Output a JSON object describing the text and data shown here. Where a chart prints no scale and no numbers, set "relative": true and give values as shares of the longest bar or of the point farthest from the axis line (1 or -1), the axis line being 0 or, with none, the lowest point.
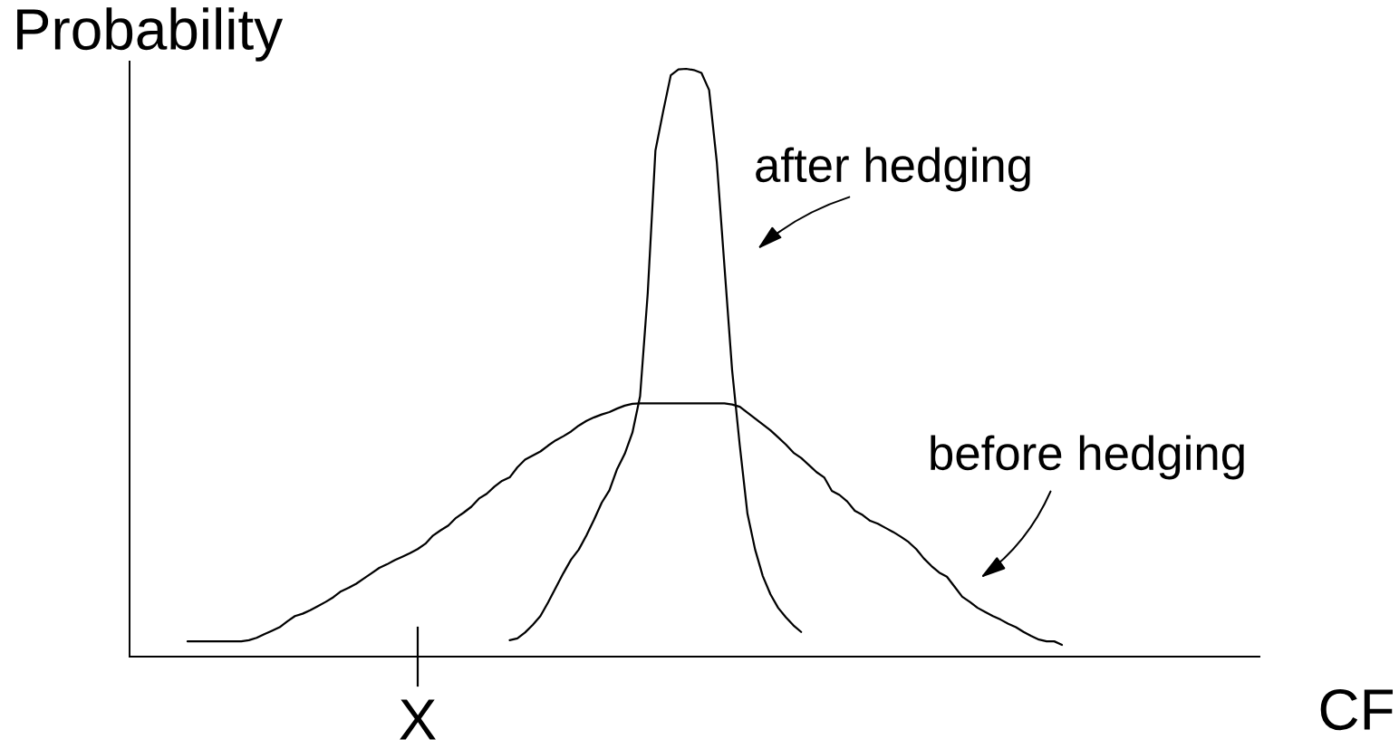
{
  "chart_data": {
    "type": "line",
    "relative": true,
    "ylabel": "Probability",
    "xlabel": "CF",
    "line_style": "solid",
    "categories": [
      null,
      null,
      null,
      null,
      null,
      null,
      null,
      null,
      null,
      null,
      null,
      null,
      null,
      null,
      null,
      null,
      null,
      null,
      null,
      null,
      null,
      null,
      null,
      null,
      null,
      null,
      null,
      null,
      null,
      null,
      null,
      null,
      null,
      null,
      null,
      null,
      null,
      null,
      null,
      null,
      null,
      null,
      null,
      null,
      null,
      null,
      null,
      null,
      null,
      null,
      null,
      null,
      null,
      null,
      null,
      null,
      null,
      null,
      null,
      null,
      null,
      null,
      null,
      null,
      null,
      null,
      null,
      null,
      null,
      null,
      null,
      null,
      null,
      null,
      null,
      null,
      null,
      null,
      null,
      null,
      null,
      null,
      null,
      null,
      null,
      null,
      null,
      null,
      null,
      null,
      null,
      null,
      null,
      null,
      null,
      null,
      null,
      null,
      null,
      null,
      null,
      null,
      null,
      null,
      null,
      null,
      null,
      null,
      null,
      null,
      null,
      null,
      null,
      null,
      null
    ],
    "series": [
      {
        "name": "before hedging",
        "color": "#000000",
        "values": [
          0.026,
          0.026,
          0.026,
          0.026,
          0.026,
          0.026,
          0.026,
          0.026,
          0.028,
          0.032,
          0.038,
          0.044,
          0.05,
          0.06,
          0.069,
          0.073,
          0.079,
          0.086,
          0.093,
          0.101,
          0.111,
          0.117,
          0.124,
          0.133,
          0.142,
          0.151,
          0.157,
          0.164,
          0.17,
          0.176,
          0.183,
          0.192,
          0.206,
          0.215,
          0.223,
          0.236,
          0.245,
          0.255,
          0.269,
          0.277,
          0.289,
          0.299,
          0.305,
          0.322,
          0.335,
          0.342,
          0.349,
          0.359,
          0.368,
          0.375,
          0.383,
          0.393,
          0.401,
          0.407,
          0.412,
          0.416,
          0.422,
          0.427,
          0.43,
          0.431,
          0.431,
          0.431,
          0.431,
          0.431,
          0.431,
          0.431,
          0.431,
          0.431,
          0.431,
          0.431,
          0.431,
          0.429,
          0.425,
          0.415,
          0.405,
          0.395,
          0.385,
          0.373,
          0.361,
          0.347,
          0.338,
          0.326,
          0.314,
          0.305,
          0.282,
          0.275,
          0.264,
          0.248,
          0.241,
          0.231,
          0.226,
          0.219,
          0.212,
          0.204,
          0.195,
          0.183,
          0.167,
          0.154,
          0.143,
          0.136,
          0.119,
          0.102,
          0.093,
          0.083,
          0.076,
          0.069,
          0.063,
          0.056,
          0.05,
          0.042,
          0.035,
          0.029,
          0.026,
          0.026,
          0.02
        ]
      },
      {
        "name": "after hedging",
        "color": "#000000",
        "values": [
          null,
          null,
          null,
          null,
          null,
          null,
          null,
          null,
          null,
          null,
          null,
          null,
          null,
          null,
          null,
          null,
          null,
          null,
          null,
          null,
          null,
          null,
          null,
          null,
          null,
          null,
          null,
          null,
          null,
          null,
          null,
          null,
          null,
          null,
          null,
          null,
          null,
          null,
          null,
          null,
          null,
          null,
          0.028,
          0.031,
          0.041,
          0.054,
          0.069,
          0.092,
          0.117,
          0.142,
          0.165,
          0.182,
          0.206,
          0.233,
          0.262,
          0.283,
          0.319,
          0.345,
          0.381,
          0.443,
          0.619,
          0.861,
          0.927,
          0.989,
          0.999,
          1.0,
          0.998,
          0.993,
          0.964,
          0.842,
          0.664,
          0.487,
          0.359,
          0.243,
          0.182,
          0.137,
          0.106,
          0.083,
          0.067,
          0.053,
          0.042,
          null,
          null,
          null,
          null,
          null,
          null,
          null,
          null,
          null,
          null,
          null,
          null,
          null,
          null,
          null,
          null,
          null,
          null,
          null,
          null,
          null,
          null,
          null,
          null,
          null,
          null,
          null,
          null,
          null,
          null,
          null,
          null,
          null,
          null
        ]
      }
    ],
    "annotations": [
      "X"
    ]
  }
}
